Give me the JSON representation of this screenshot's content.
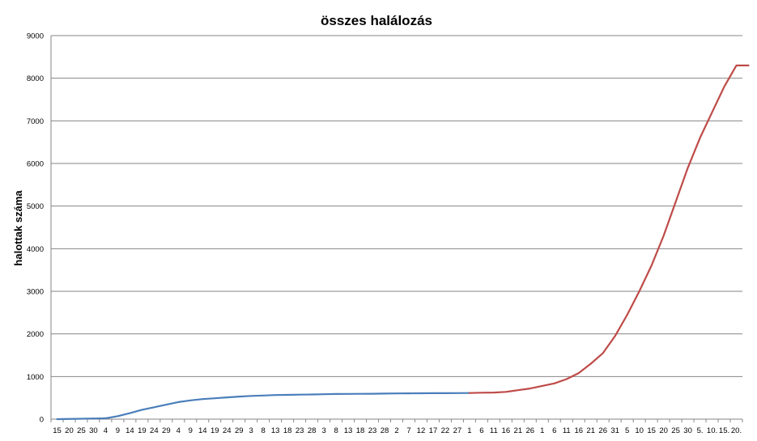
{
  "chart_data": {
    "type": "line",
    "title": "összes halálozás",
    "xlabel": "",
    "ylabel": "halottak száma",
    "ylim": [
      0,
      9000
    ],
    "yticks": [
      "0",
      "1000",
      "2000",
      "3000",
      "4000",
      "5000",
      "6000",
      "7000",
      "8000",
      "9000"
    ],
    "grid": true,
    "legend": "none",
    "x_tick_labels": [
      "15",
      "20",
      "25",
      "30",
      "4",
      "9",
      "14",
      "19",
      "24",
      "29",
      "4",
      "9",
      "14",
      "19",
      "24",
      "29",
      "3",
      "8",
      "13",
      "18",
      "23",
      "28",
      "3",
      "8",
      "13",
      "18",
      "23",
      "28",
      "2",
      "7",
      "12",
      "17",
      "22",
      "27",
      "1",
      "6",
      "11",
      "16",
      "21",
      "26",
      "1",
      "6",
      "11",
      "16",
      "21",
      "26",
      "31",
      "5",
      "10",
      "15",
      "20",
      "25",
      "30",
      "5.",
      "10.",
      "15.",
      "20."
    ],
    "series": [
      {
        "color": "#4a7ebb",
        "x": [
          0,
          2,
          3,
          4,
          5,
          6,
          7,
          8,
          9,
          10,
          11,
          12,
          13,
          14,
          15,
          16,
          17,
          18,
          19,
          20,
          21,
          22,
          23,
          24,
          25,
          26,
          27,
          28,
          29,
          30,
          31,
          32,
          33,
          34
        ],
        "values": [
          0,
          10,
          15,
          20,
          70,
          140,
          220,
          280,
          340,
          400,
          440,
          470,
          490,
          510,
          530,
          545,
          555,
          565,
          570,
          575,
          580,
          585,
          590,
          592,
          595,
          597,
          600,
          603,
          605,
          607,
          609,
          610,
          612,
          614
        ]
      },
      {
        "color": "#be4b48",
        "x": [
          34,
          35,
          36,
          37,
          38,
          39,
          40,
          41,
          42,
          43,
          44,
          45,
          46,
          47,
          48,
          49,
          50,
          51,
          52,
          53,
          54,
          55,
          56,
          57
        ],
        "values": [
          614,
          620,
          625,
          640,
          680,
          720,
          780,
          840,
          940,
          1080,
          1300,
          1550,
          1950,
          2450,
          3000,
          3600,
          4300,
          5100,
          5900,
          6600,
          7200,
          7800,
          8300,
          8300
        ]
      }
    ]
  }
}
